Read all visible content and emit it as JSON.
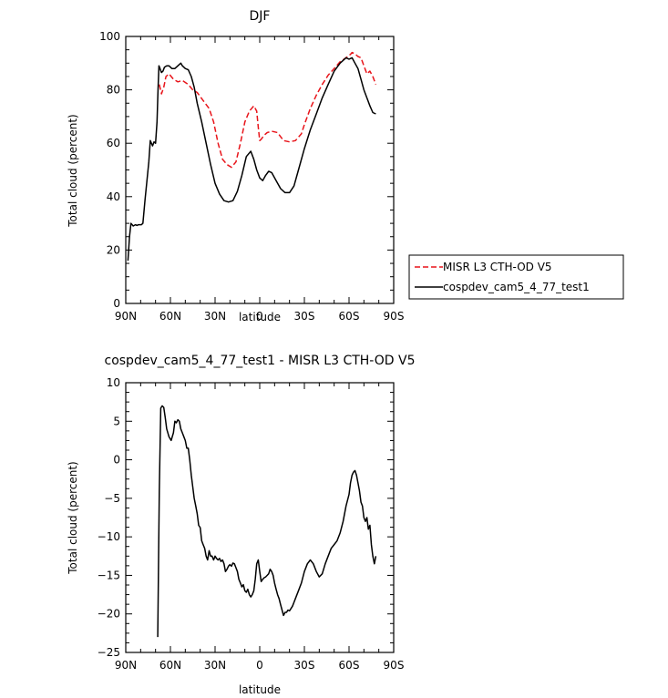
{
  "chart_data": [
    {
      "type": "line",
      "title": "DJF",
      "xlabel": "latitude",
      "ylabel": "Total cloud (percent)",
      "xlim": [
        90,
        -90
      ],
      "ylim": [
        0,
        100
      ],
      "x_ticks": [
        90,
        60,
        30,
        0,
        -30,
        -60,
        -90
      ],
      "x_tick_labels": [
        "90N",
        "60N",
        "30N",
        "0",
        "30S",
        "60S",
        "90S"
      ],
      "y_ticks": [
        0,
        20,
        40,
        60,
        80,
        100
      ],
      "y_tick_labels": [
        "0",
        "20",
        "40",
        "60",
        "80",
        "100"
      ],
      "legend": "outside right",
      "series": [
        {
          "name": "MISR L3 CTH-OD V5",
          "color": "#e8141a",
          "style": "dashed",
          "x": [
            67.5,
            66,
            64.5,
            63,
            61,
            58,
            55,
            52,
            48,
            45,
            42,
            38,
            34,
            31,
            28,
            25,
            22,
            19,
            16,
            13,
            10,
            7,
            4,
            2,
            1,
            0,
            -1,
            -3,
            -5,
            -8,
            -12,
            -16,
            -20,
            -24,
            -28,
            -30,
            -34,
            -38,
            -42,
            -46,
            -50,
            -54,
            -58,
            -61,
            -62,
            -64,
            -66,
            -68,
            -70,
            -72,
            -74,
            -76,
            -78
          ],
          "y": [
            82,
            78.5,
            81,
            85,
            86,
            84,
            83,
            83.5,
            82,
            80,
            79,
            76,
            73,
            68,
            60,
            54,
            52,
            51,
            53,
            60,
            68,
            72,
            74,
            72,
            66,
            61,
            61.5,
            63,
            64,
            64.5,
            64,
            61,
            60.5,
            61,
            63.5,
            67,
            73,
            78,
            82,
            85.5,
            88,
            90.5,
            92,
            93.3,
            94,
            93.5,
            92.5,
            92,
            89,
            86,
            87,
            85,
            82
          ]
        },
        {
          "name": "cospdev_cam5_4_77_test1",
          "color": "#000000",
          "style": "solid",
          "x": [
            88.5,
            87.5,
            86.5,
            85,
            83.5,
            82.5,
            81.5,
            80.5,
            79.5,
            78.5,
            77,
            74.5,
            73.5,
            72,
            71,
            70,
            69,
            68.3,
            67.7,
            67,
            66,
            65,
            64,
            62.5,
            61,
            59,
            57,
            55,
            53,
            52,
            50,
            48,
            46,
            44,
            42,
            39,
            36,
            33,
            30,
            27,
            24,
            21,
            18,
            15,
            12,
            9,
            6,
            4,
            2,
            0,
            -2,
            -4,
            -6,
            -8,
            -11,
            -14,
            -17,
            -20,
            -23,
            -26,
            -30,
            -34,
            -38,
            -42,
            -46,
            -50,
            -54,
            -58,
            -60,
            -62,
            -64,
            -66,
            -68,
            -70,
            -72,
            -74,
            -76,
            -78
          ],
          "y": [
            16,
            25,
            30,
            29,
            29.5,
            29.2,
            29.5,
            29.5,
            29.5,
            30,
            39,
            53,
            61,
            59,
            60.5,
            60,
            68,
            80,
            89,
            88,
            86.5,
            87,
            88.5,
            89,
            89,
            88,
            88,
            89,
            90,
            89,
            88,
            87.5,
            85,
            81,
            75,
            68,
            60,
            52,
            45,
            41,
            38.5,
            38,
            38.5,
            42,
            48,
            55,
            57,
            54,
            50,
            47,
            46,
            48,
            49.5,
            49,
            46,
            43,
            41.5,
            41.5,
            44,
            50,
            58,
            65,
            71,
            77,
            82,
            87,
            90,
            92,
            91.5,
            92,
            90,
            88,
            84,
            80,
            77,
            74,
            71.5,
            71
          ]
        }
      ]
    },
    {
      "type": "line",
      "title": "cospdev_cam5_4_77_test1 - MISR L3 CTH-OD V5",
      "xlabel": "latitude",
      "ylabel": "Total cloud (percent)",
      "xlim": [
        90,
        -90
      ],
      "ylim": [
        -25,
        10
      ],
      "x_ticks": [
        90,
        60,
        30,
        0,
        -30,
        -60,
        -90
      ],
      "x_tick_labels": [
        "90N",
        "60N",
        "30N",
        "0",
        "30S",
        "60S",
        "90S"
      ],
      "y_ticks": [
        -25,
        -20,
        -15,
        -10,
        -5,
        0,
        5,
        10
      ],
      "y_tick_labels": [
        "−25",
        "−20",
        "−15",
        "−10",
        "−5",
        "0",
        "5",
        "10"
      ],
      "series": [
        {
          "color": "#000000",
          "style": "solid",
          "x": [
            68.5,
            67.5,
            66.5,
            65.5,
            64.5,
            63.5,
            62.5,
            61,
            59.5,
            58,
            57,
            56,
            55,
            54,
            53,
            52,
            51,
            50,
            49,
            48,
            47,
            46,
            45,
            44,
            43,
            42,
            41,
            40,
            39,
            38,
            37,
            36,
            35,
            34,
            33,
            32,
            31,
            30,
            29,
            28,
            27,
            26,
            25,
            24,
            23,
            22,
            21,
            20,
            19,
            18,
            17,
            16,
            15,
            14,
            13,
            12,
            11,
            10,
            9,
            8,
            7,
            6,
            5,
            4,
            3,
            2,
            1,
            0,
            -1,
            -2,
            -3,
            -4,
            -5,
            -6,
            -7,
            -8,
            -9,
            -10,
            -11,
            -12,
            -13,
            -14,
            -15,
            -16,
            -17,
            -18,
            -19,
            -20,
            -21,
            -22,
            -23,
            -24,
            -26,
            -28,
            -30,
            -32,
            -34,
            -36,
            -38,
            -40,
            -42,
            -44,
            -46,
            -48,
            -50,
            -52,
            -54,
            -56,
            -58,
            -60,
            -61,
            -62,
            -63,
            -64,
            -65,
            -66,
            -67,
            -68,
            -69,
            -70,
            -71,
            -72,
            -73,
            -74,
            -75,
            -76,
            -77,
            -78
          ],
          "y": [
            -23,
            -4,
            6.7,
            7,
            6.8,
            5.5,
            4,
            3,
            2.5,
            3.5,
            5,
            4.8,
            5.2,
            5,
            4,
            3.5,
            3,
            2.5,
            1.5,
            1.5,
            0,
            -2,
            -3.5,
            -5,
            -6,
            -7,
            -8.5,
            -8.8,
            -10.5,
            -11,
            -11.5,
            -12.5,
            -13,
            -11.8,
            -12.5,
            -12.5,
            -13,
            -12.5,
            -12.8,
            -13,
            -12.8,
            -13.2,
            -13,
            -13.5,
            -14.5,
            -14.2,
            -13.8,
            -13.6,
            -13.8,
            -13.4,
            -13.5,
            -14,
            -14.5,
            -15.5,
            -16,
            -16.5,
            -16.2,
            -17,
            -17.2,
            -16.8,
            -17.5,
            -17.8,
            -17.5,
            -17,
            -15.5,
            -13.5,
            -13,
            -14.5,
            -15.8,
            -15.5,
            -15.3,
            -15.2,
            -15,
            -14.8,
            -14.2,
            -14.5,
            -15,
            -16,
            -16.8,
            -17.5,
            -18,
            -18.8,
            -19.5,
            -20.2,
            -19.8,
            -19.8,
            -19.5,
            -19.6,
            -19.3,
            -19,
            -18.5,
            -18,
            -17,
            -16,
            -14.5,
            -13.5,
            -13,
            -13.5,
            -14.5,
            -15.2,
            -14.8,
            -13.5,
            -12.5,
            -11.5,
            -11,
            -10.5,
            -9.5,
            -8,
            -6,
            -4.5,
            -3,
            -2,
            -1.6,
            -1.4,
            -2,
            -3,
            -4,
            -5.5,
            -6,
            -7.5,
            -8,
            -7.5,
            -9,
            -8.5,
            -11,
            -12.5,
            -13.5,
            -12.5
          ]
        }
      ]
    }
  ]
}
